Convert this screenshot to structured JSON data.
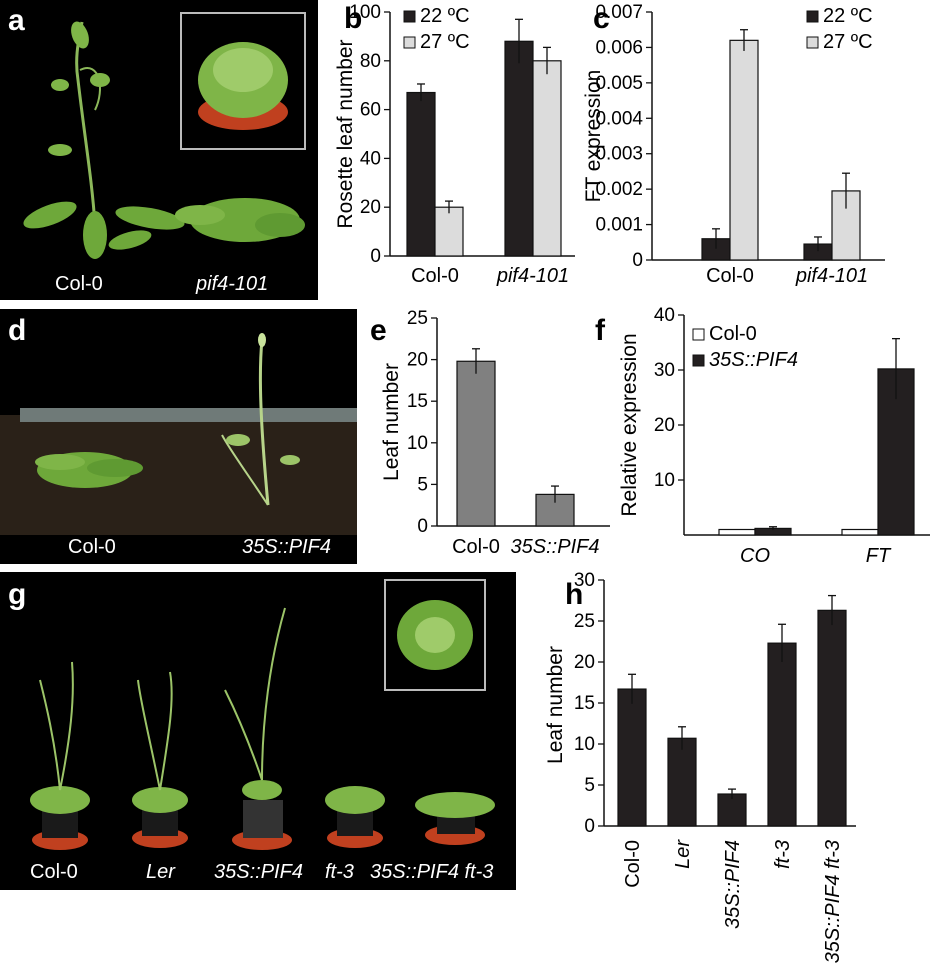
{
  "colors": {
    "dark": "#231f20",
    "light": "#dcdcdc",
    "mid": "#808080",
    "photo_bg": "#000000",
    "soil": "#2a2118",
    "plant": "#6ea83a",
    "pot": "#c0401f"
  },
  "panels": {
    "a": {
      "letter": "a",
      "labels": [
        "Col-0",
        "pif4-101"
      ]
    },
    "b": {
      "letter": "b"
    },
    "c": {
      "letter": "c"
    },
    "d": {
      "letter": "d",
      "labels": [
        "Col-0",
        "35S::PIF4"
      ]
    },
    "e": {
      "letter": "e"
    },
    "f": {
      "letter": "f"
    },
    "g": {
      "letter": "g",
      "labels": [
        "Col-0",
        "Ler",
        "35S::PIF4",
        "ft-3",
        "35S::PIF4 ft-3"
      ]
    },
    "h": {
      "letter": "h"
    }
  },
  "chart_data": [
    {
      "id": "b",
      "type": "bar",
      "ylabel": "Rosette leaf number",
      "ylim": [
        0,
        100
      ],
      "yticks": [
        0,
        20,
        40,
        60,
        80,
        100
      ],
      "categories": [
        "Col-0",
        "pif4-101"
      ],
      "series": [
        {
          "name": "22 ºC",
          "values": [
            67,
            88
          ],
          "errors": [
            3.5,
            9
          ],
          "color": "#231f20"
        },
        {
          "name": "27 ºC",
          "values": [
            20,
            80
          ],
          "errors": [
            2.5,
            5.5
          ],
          "color": "#dcdcdc"
        }
      ],
      "legend": "top-left"
    },
    {
      "id": "c",
      "type": "bar",
      "ylabel": "FT expression",
      "ylim": [
        0,
        0.007
      ],
      "yticks": [
        "0",
        "0.001",
        "0.002",
        "0.003",
        "0.004",
        "0.005",
        "0.006",
        "0.007"
      ],
      "categories": [
        "Col-0",
        "pif4-101"
      ],
      "series": [
        {
          "name": "22 ºC",
          "values": [
            0.0006,
            0.00045
          ],
          "errors": [
            0.00028,
            0.0002
          ],
          "color": "#231f20"
        },
        {
          "name": "27 ºC",
          "values": [
            0.0062,
            0.00195
          ],
          "errors": [
            0.0003,
            0.0005
          ],
          "color": "#dcdcdc"
        }
      ],
      "legend": "top-right"
    },
    {
      "id": "e",
      "type": "bar",
      "ylabel": "Leaf number",
      "ylim": [
        0,
        25
      ],
      "yticks": [
        0,
        5,
        10,
        15,
        20,
        25
      ],
      "categories": [
        "Col-0",
        "35S::PIF4"
      ],
      "series": [
        {
          "values": [
            19.8,
            3.8
          ],
          "errors": [
            1.5,
            1.0
          ],
          "color": "#808080"
        }
      ]
    },
    {
      "id": "f",
      "type": "bar",
      "ylabel": "Relative expression",
      "ylim": [
        0,
        40
      ],
      "yticks": [
        10,
        20,
        30,
        40
      ],
      "categories": [
        "CO",
        "FT"
      ],
      "series": [
        {
          "name": "Col-0",
          "values": [
            1,
            1
          ],
          "errors": [
            0,
            0
          ],
          "color": "#ffffff"
        },
        {
          "name": "35S::PIF4",
          "values": [
            1.2,
            30.2
          ],
          "errors": [
            0.3,
            5.5
          ],
          "color": "#231f20"
        }
      ],
      "legend": "top-left"
    },
    {
      "id": "h",
      "type": "bar",
      "ylabel": "Leaf number",
      "ylim": [
        0,
        30
      ],
      "yticks": [
        0,
        5,
        10,
        15,
        20,
        25,
        30
      ],
      "categories": [
        "Col-0",
        "Ler",
        "35S::PIF4",
        "ft-3",
        "35S::PIF4 ft-3"
      ],
      "series": [
        {
          "values": [
            16.7,
            10.7,
            3.9,
            22.3,
            26.3
          ],
          "errors": [
            1.8,
            1.4,
            0.6,
            2.3,
            1.8
          ],
          "color": "#231f20"
        }
      ]
    }
  ]
}
